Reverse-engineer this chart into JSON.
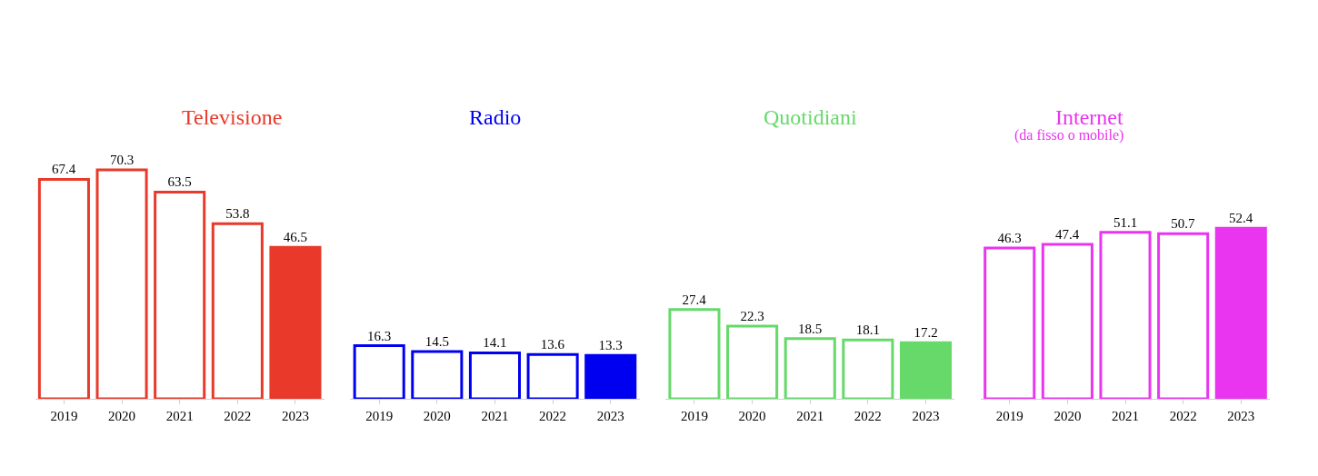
{
  "chart_data": [
    {
      "type": "bar",
      "title": "Televisione",
      "categories": [
        "2019",
        "2020",
        "2021",
        "2022",
        "2023"
      ],
      "values": [
        67.4,
        70.3,
        63.5,
        53.8,
        46.5
      ],
      "color": "#e8392a",
      "colors": [
        "#ffffff",
        "#ffffff",
        "#ffffff",
        "#ffffff",
        "#e8392a"
      ],
      "data_labels": true
    },
    {
      "type": "bar",
      "title": "Radio",
      "categories": [
        "2019",
        "2020",
        "2021",
        "2022",
        "2023"
      ],
      "values": [
        16.3,
        14.5,
        14.1,
        13.6,
        13.3
      ],
      "color": "#0000f0",
      "colors": [
        "#ffffff",
        "#ffffff",
        "#ffffff",
        "#ffffff",
        "#0000f0"
      ],
      "data_labels": true
    },
    {
      "type": "bar",
      "title": "Quotidiani",
      "categories": [
        "2019",
        "2020",
        "2021",
        "2022",
        "2023"
      ],
      "values": [
        27.4,
        22.3,
        18.5,
        18.1,
        17.2
      ],
      "color": "#66d96a",
      "colors": [
        "#ffffff",
        "#ffffff",
        "#ffffff",
        "#ffffff",
        "#66d96a"
      ],
      "data_labels": true
    },
    {
      "type": "bar",
      "title": "Internet",
      "subtitle": "(da fisso o mobile)",
      "categories": [
        "2019",
        "2020",
        "2021",
        "2022",
        "2023"
      ],
      "values": [
        46.3,
        47.4,
        51.1,
        50.7,
        52.4
      ],
      "color": "#e935f0",
      "colors": [
        "#ffffff",
        "#ffffff",
        "#ffffff",
        "#ffffff",
        "#e935f0"
      ],
      "data_labels": true
    }
  ]
}
